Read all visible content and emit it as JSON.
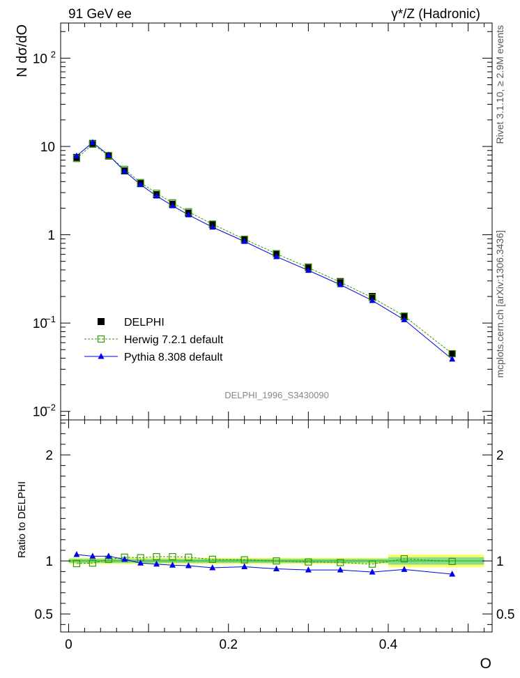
{
  "header": {
    "left": "91 GeV ee",
    "right": "γ*/Z (Hadronic)"
  },
  "side_labels": {
    "rivet": "Rivet 3.1.10, ≥ 2.9M events",
    "mcplots": "mcplots.cern.ch [arXiv:1306.3436]"
  },
  "chart_data": {
    "type": "line",
    "analysis_label": "DELPHI_1996_S3430090",
    "xlabel": "O",
    "ylabel_main": "N dσ/dO",
    "ylabel_ratio": "Ratio to DELPHI",
    "xlim": [
      -0.01,
      0.53
    ],
    "x_ticks": [
      {
        "v": 0,
        "label": "0"
      },
      {
        "v": 0.2,
        "label": "0.2"
      },
      {
        "v": 0.4,
        "label": "0.4"
      }
    ],
    "main": {
      "yscale": "log",
      "ylim": [
        0.008,
        250
      ],
      "y_ticks": [
        {
          "v": 0.01,
          "base": "10",
          "exp": "−2"
        },
        {
          "v": 0.1,
          "base": "10",
          "exp": "−1"
        },
        {
          "v": 1,
          "base": "1",
          "exp": ""
        },
        {
          "v": 10,
          "base": "10",
          "exp": ""
        },
        {
          "v": 100,
          "base": "10",
          "exp": "2"
        }
      ]
    },
    "ratio": {
      "ylim": [
        0.33,
        2.33
      ],
      "y_ticks": [
        {
          "v": 0.5,
          "label": "0.5"
        },
        {
          "v": 1,
          "label": "1"
        },
        {
          "v": 2,
          "label": "2"
        }
      ]
    },
    "x": [
      0.01,
      0.03,
      0.05,
      0.07,
      0.09,
      0.11,
      0.13,
      0.15,
      0.18,
      0.22,
      0.26,
      0.3,
      0.34,
      0.38,
      0.42,
      0.48
    ],
    "band_edges": [
      0,
      0.02,
      0.04,
      0.06,
      0.08,
      0.1,
      0.12,
      0.14,
      0.16,
      0.2,
      0.24,
      0.28,
      0.32,
      0.36,
      0.4,
      0.44,
      0.52
    ],
    "band_inner": [
      0.02,
      0.02,
      0.02,
      0.02,
      0.02,
      0.02,
      0.02,
      0.02,
      0.02,
      0.02,
      0.02,
      0.02,
      0.02,
      0.02,
      0.035,
      0.035
    ],
    "band_outer": [
      0.03,
      0.03,
      0.03,
      0.03,
      0.03,
      0.03,
      0.03,
      0.03,
      0.03,
      0.03,
      0.03,
      0.03,
      0.03,
      0.03,
      0.06,
      0.06
    ],
    "series": [
      {
        "name": "DELPHI",
        "style": "data",
        "color": "#000000",
        "values": [
          7.5,
          10.8,
          7.8,
          5.3,
          3.8,
          2.85,
          2.22,
          1.76,
          1.3,
          0.88,
          0.61,
          0.43,
          0.295,
          0.2,
          0.118,
          0.045
        ]
      },
      {
        "name": "Herwig 7.2.1 default",
        "style": "open-square-dashed",
        "color": "#339900",
        "values": [
          7.3,
          10.6,
          7.9,
          5.5,
          3.9,
          2.95,
          2.3,
          1.82,
          1.32,
          0.89,
          0.61,
          0.425,
          0.29,
          0.194,
          0.12,
          0.045
        ],
        "ratio": [
          0.975,
          0.98,
          1.015,
          1.035,
          1.03,
          1.04,
          1.04,
          1.035,
          1.015,
          1.01,
          1.0,
          0.99,
          0.985,
          0.97,
          1.02,
          0.995
        ]
      },
      {
        "name": "Pythia 8.308 default",
        "style": "filled-triangle-solid",
        "color": "#0000ee",
        "values": [
          7.8,
          11.1,
          8.0,
          5.25,
          3.7,
          2.75,
          2.13,
          1.68,
          1.22,
          0.84,
          0.565,
          0.395,
          0.272,
          0.18,
          0.109,
          0.039
        ],
        "ratio": [
          1.06,
          1.045,
          1.045,
          1.015,
          0.98,
          0.97,
          0.96,
          0.955,
          0.935,
          0.945,
          0.925,
          0.915,
          0.915,
          0.895,
          0.92,
          0.875
        ]
      }
    ],
    "band_colors": {
      "outer": "#ffff66",
      "inner": "#88dd88",
      "line": "#44bb44"
    }
  }
}
